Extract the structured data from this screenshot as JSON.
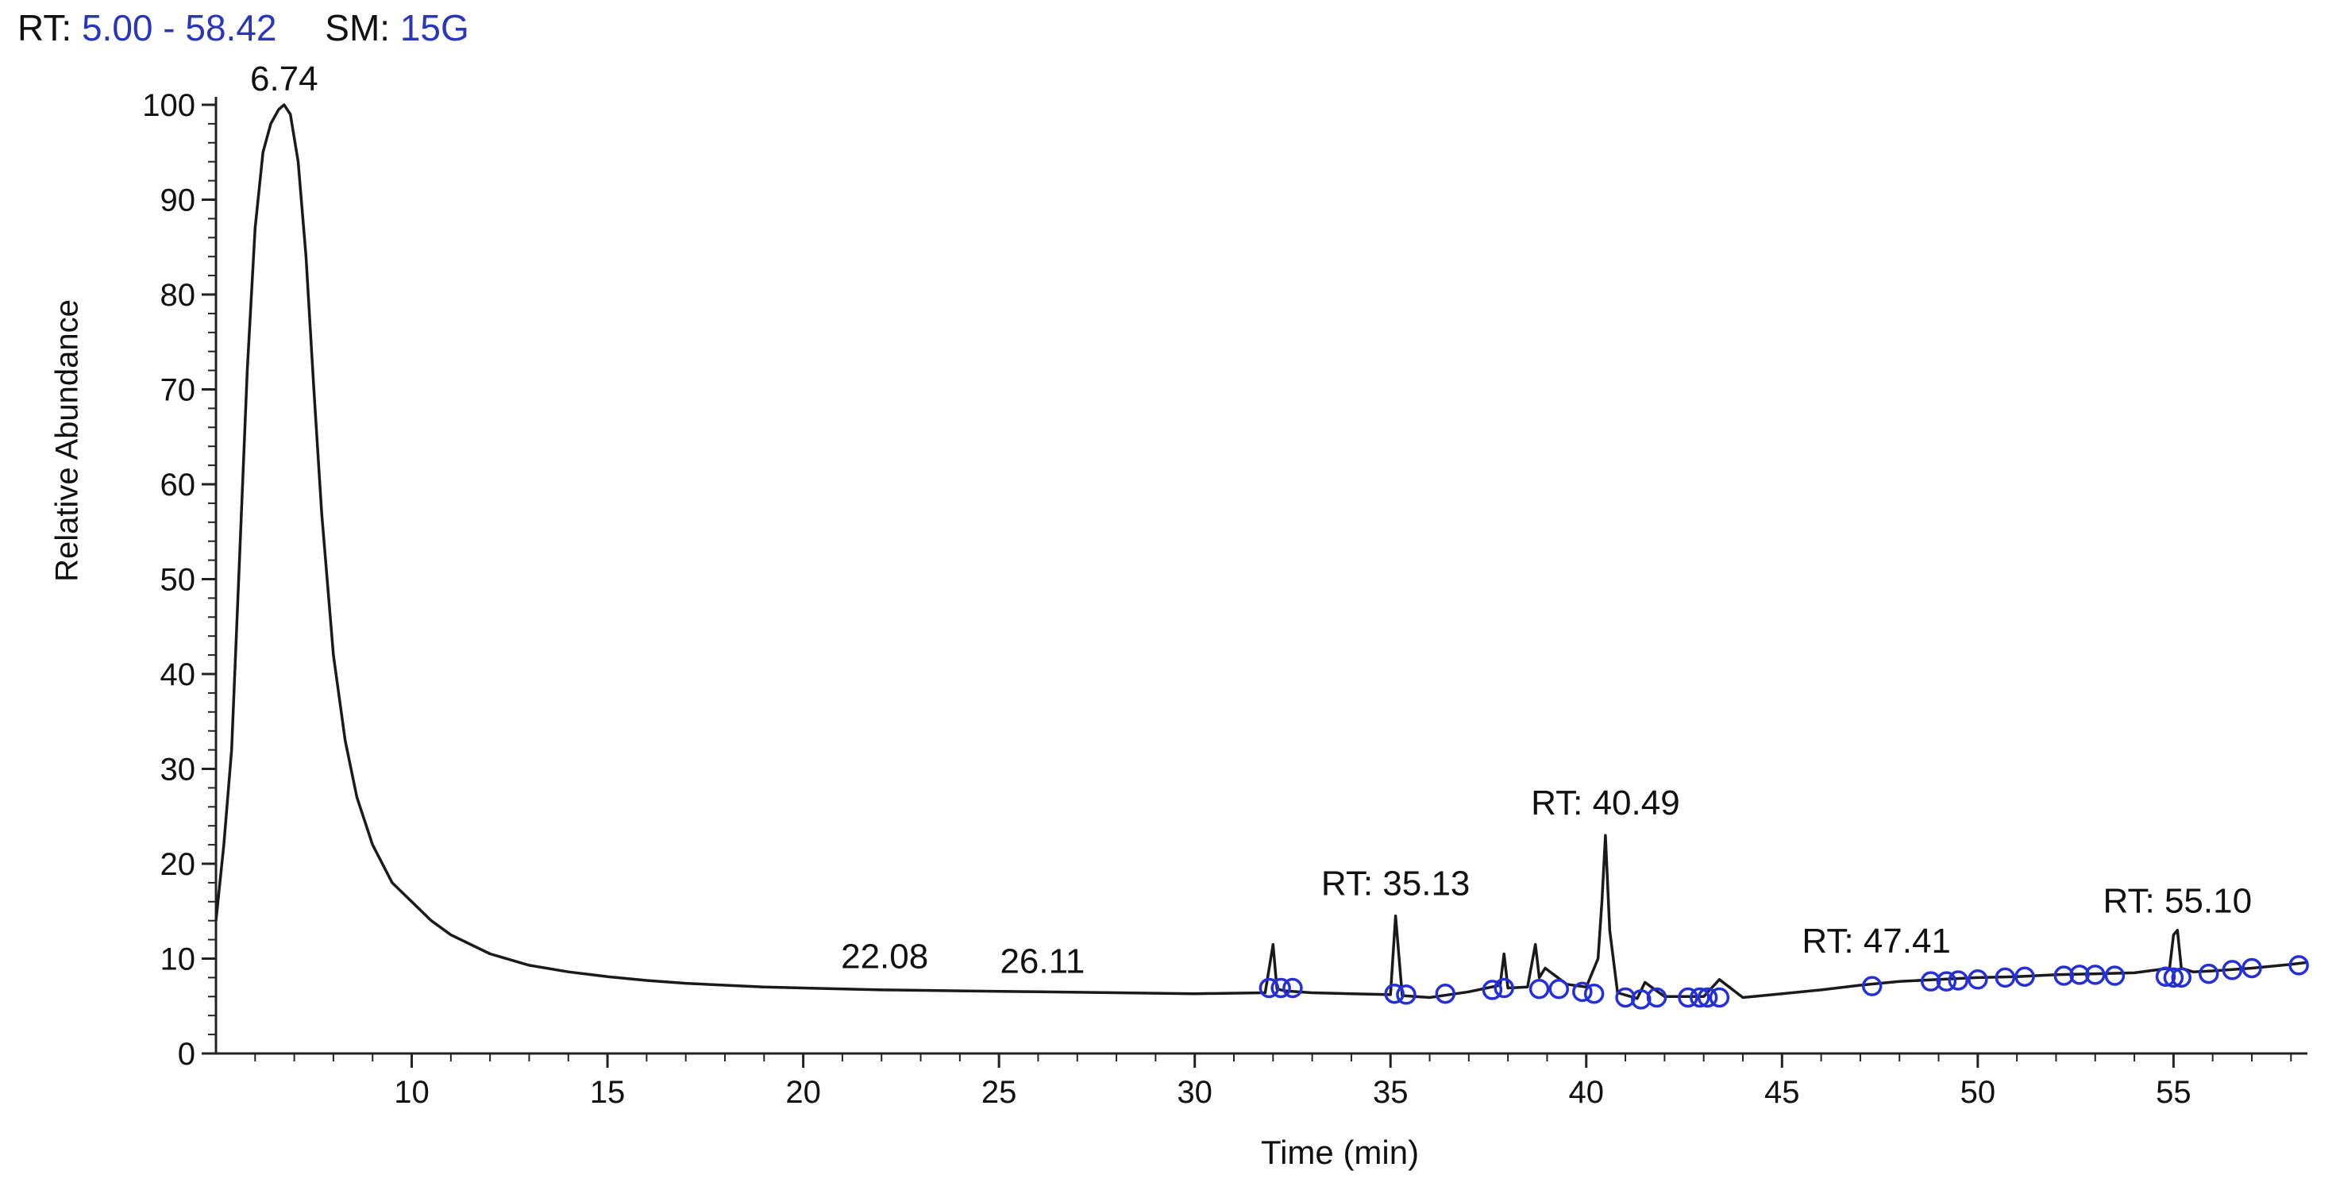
{
  "header": {
    "rt_key": "RT:",
    "rt_value": "5.00 - 58.42",
    "sm_key": "SM:",
    "sm_value": "15G"
  },
  "colors": {
    "trace": "#1a1a1a",
    "marker": "#2430d6",
    "header_value": "#2a36b8"
  },
  "chart_data": {
    "type": "line",
    "xlabel": "Time (min)",
    "ylabel": "Relative Abundance",
    "xlim": [
      5.0,
      58.42
    ],
    "ylim": [
      0,
      100
    ],
    "x_ticks": [
      10,
      15,
      20,
      25,
      30,
      35,
      40,
      45,
      50,
      55
    ],
    "y_ticks": [
      0,
      10,
      20,
      30,
      40,
      50,
      60,
      70,
      80,
      90,
      100
    ],
    "grid": false,
    "series": [
      {
        "x": [
          5.0,
          5.2,
          5.4,
          5.6,
          5.8,
          6.0,
          6.2,
          6.4,
          6.6,
          6.74,
          6.9,
          7.1,
          7.3,
          7.5,
          7.7,
          8.0,
          8.3,
          8.6,
          9.0,
          9.5,
          10.0,
          10.5,
          11.0,
          12.0,
          13.0,
          14.0,
          15.0,
          16.0,
          17.0,
          18.0,
          19.0,
          20.0,
          22.0,
          24.0,
          26.0,
          28.0,
          30.0,
          31.8,
          32.0,
          32.1,
          32.3,
          33.0,
          34.0,
          35.0,
          35.13,
          35.3,
          36.0,
          37.0,
          37.8,
          37.9,
          38.0,
          38.5,
          38.7,
          38.8,
          38.95,
          39.5,
          40.0,
          40.3,
          40.4,
          40.49,
          40.6,
          40.8,
          41.3,
          41.5,
          42.0,
          43.0,
          43.4,
          44.0,
          45.0,
          46.0,
          47.0,
          48.0,
          49.0,
          50.0,
          51.0,
          52.0,
          53.0,
          54.0,
          54.9,
          55.0,
          55.1,
          55.2,
          55.5,
          56.0,
          57.0,
          58.0,
          58.42
        ],
        "y": [
          14,
          22,
          32,
          52,
          72,
          87,
          95,
          98,
          99.5,
          100,
          99,
          94,
          84,
          70,
          57,
          42,
          33,
          27,
          22,
          18,
          16,
          14,
          12.5,
          10.5,
          9.3,
          8.6,
          8.1,
          7.7,
          7.4,
          7.2,
          7.0,
          6.9,
          6.7,
          6.6,
          6.5,
          6.4,
          6.3,
          6.4,
          11.5,
          6.8,
          6.6,
          6.4,
          6.3,
          6.2,
          14.5,
          6.1,
          5.9,
          6.5,
          7.2,
          10.5,
          6.9,
          7.0,
          11.5,
          8.0,
          9.0,
          7.3,
          7.0,
          10.0,
          16.0,
          23.0,
          13.0,
          6.4,
          5.8,
          7.5,
          6.0,
          6.0,
          7.8,
          5.9,
          6.3,
          6.7,
          7.2,
          7.6,
          7.8,
          8.0,
          8.1,
          8.3,
          8.4,
          8.5,
          9.0,
          12.5,
          13.0,
          9.0,
          8.6,
          8.7,
          9.0,
          9.4,
          9.6
        ]
      }
    ],
    "peak_labels": [
      {
        "x": 6.74,
        "y": 100,
        "text": "6.74"
      },
      {
        "x": 22.08,
        "y": 6.8,
        "text": "22.08"
      },
      {
        "x": 26.11,
        "y": 6.5,
        "text": "26.11"
      },
      {
        "x": 35.13,
        "y": 14.5,
        "text": "RT: 35.13"
      },
      {
        "x": 40.49,
        "y": 23.0,
        "text": "RT: 40.49"
      },
      {
        "x": 47.41,
        "y": 7.3,
        "text": "RT: 47.41"
      },
      {
        "x": 55.1,
        "y": 13.0,
        "text": "RT: 55.10"
      }
    ],
    "markers": [
      {
        "x": 31.9,
        "y": 6.9
      },
      {
        "x": 32.2,
        "y": 6.9
      },
      {
        "x": 32.5,
        "y": 6.9
      },
      {
        "x": 35.1,
        "y": 6.3
      },
      {
        "x": 35.4,
        "y": 6.2
      },
      {
        "x": 36.4,
        "y": 6.3
      },
      {
        "x": 37.6,
        "y": 6.7
      },
      {
        "x": 37.9,
        "y": 6.9
      },
      {
        "x": 38.8,
        "y": 6.8
      },
      {
        "x": 39.3,
        "y": 6.8
      },
      {
        "x": 39.9,
        "y": 6.5
      },
      {
        "x": 40.2,
        "y": 6.3
      },
      {
        "x": 41.0,
        "y": 5.9
      },
      {
        "x": 41.4,
        "y": 5.7
      },
      {
        "x": 41.8,
        "y": 5.9
      },
      {
        "x": 42.6,
        "y": 5.9
      },
      {
        "x": 42.9,
        "y": 5.9
      },
      {
        "x": 43.1,
        "y": 5.9
      },
      {
        "x": 43.4,
        "y": 5.9
      },
      {
        "x": 47.3,
        "y": 7.1
      },
      {
        "x": 48.8,
        "y": 7.6
      },
      {
        "x": 49.2,
        "y": 7.6
      },
      {
        "x": 49.5,
        "y": 7.7
      },
      {
        "x": 50.0,
        "y": 7.8
      },
      {
        "x": 50.7,
        "y": 8.0
      },
      {
        "x": 51.2,
        "y": 8.1
      },
      {
        "x": 52.2,
        "y": 8.2
      },
      {
        "x": 52.6,
        "y": 8.3
      },
      {
        "x": 53.0,
        "y": 8.3
      },
      {
        "x": 53.5,
        "y": 8.2
      },
      {
        "x": 54.8,
        "y": 8.1
      },
      {
        "x": 55.0,
        "y": 8.0
      },
      {
        "x": 55.2,
        "y": 8.0
      },
      {
        "x": 55.9,
        "y": 8.4
      },
      {
        "x": 56.5,
        "y": 8.8
      },
      {
        "x": 57.0,
        "y": 9.0
      },
      {
        "x": 58.2,
        "y": 9.3
      }
    ]
  }
}
